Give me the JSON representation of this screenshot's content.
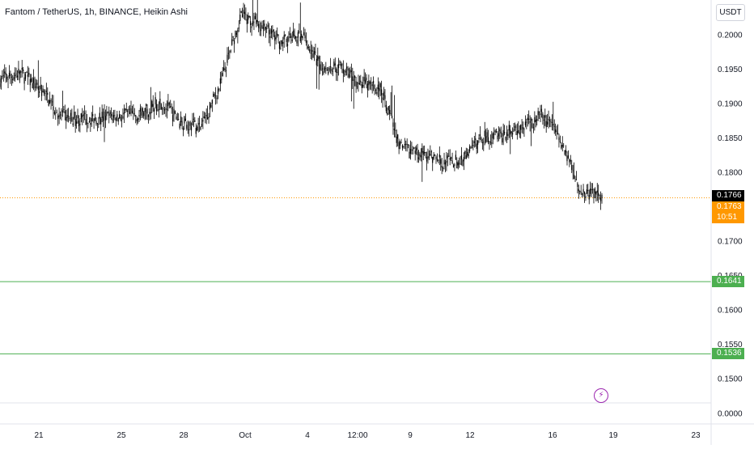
{
  "header": {
    "symbol_title": "Fantom / TetherUS, 1h, BINANCE, Heikin Ashi",
    "currency_button": "USDT"
  },
  "price_tags": {
    "last_price": "0.1766",
    "bid_price": "0.1763",
    "countdown": "10:51",
    "level_1": "0.1641",
    "level_2": "0.1536"
  },
  "colors": {
    "candle": "#000000",
    "last_tag": "#000000",
    "current_tag": "#ff9800",
    "level_line": "#4caf50",
    "level_tag": "#4caf50",
    "price_line": "#ff9800",
    "bolt": "#9c27b0"
  },
  "icons": {
    "alert": "lightning-bolt-icon"
  },
  "chart_data": {
    "type": "candlestick",
    "title": "Fantom / TetherUS, 1h, BINANCE, Heikin Ashi",
    "ylim": [
      0.0,
      0.2
    ],
    "y_ticks": [
      "0.2000",
      "0.1950",
      "0.1900",
      "0.1850",
      "0.1800",
      "0.1700",
      "0.1650",
      "0.1600",
      "0.1550",
      "0.1500",
      "0.0000"
    ],
    "x_ticks": [
      "21",
      "25",
      "28",
      "Oct",
      "4",
      "12:00",
      "9",
      "12",
      "16",
      "19",
      "23"
    ],
    "horizontal_levels": [
      0.1641,
      0.1536
    ],
    "last_price": 0.1766,
    "current_price": 0.1763,
    "price_path": [
      [
        0.1925,
        0.1945
      ],
      [
        0.1948,
        0.1942
      ],
      [
        0.1938,
        0.1905
      ],
      [
        0.1885,
        0.188
      ],
      [
        0.1878,
        0.1875
      ],
      [
        0.1885,
        0.1875
      ],
      [
        0.1895,
        0.1868
      ],
      [
        0.1882,
        0.1885
      ],
      [
        0.1912,
        0.1895
      ],
      [
        0.1878,
        0.1868
      ],
      [
        0.1858,
        0.1872
      ],
      [
        0.1905,
        0.1952
      ],
      [
        0.2025,
        0.2035
      ],
      [
        0.2008,
        0.2015
      ],
      [
        0.1992,
        0.1985
      ],
      [
        0.2012,
        0.199
      ],
      [
        0.1962,
        0.1945
      ],
      [
        0.1952,
        0.1955
      ],
      [
        0.1935,
        0.1925
      ],
      [
        0.1912,
        0.1928
      ],
      [
        0.1838,
        0.1828
      ],
      [
        0.1835,
        0.1822
      ],
      [
        0.1818,
        0.1812
      ],
      [
        0.1805,
        0.1825
      ],
      [
        0.1842,
        0.186
      ],
      [
        0.1855,
        0.1852
      ],
      [
        0.1862,
        0.1872
      ],
      [
        0.1885,
        0.1878
      ],
      [
        0.1855,
        0.1835
      ],
      [
        0.1775,
        0.1765
      ],
      [
        0.1772,
        0.1766
      ]
    ]
  }
}
